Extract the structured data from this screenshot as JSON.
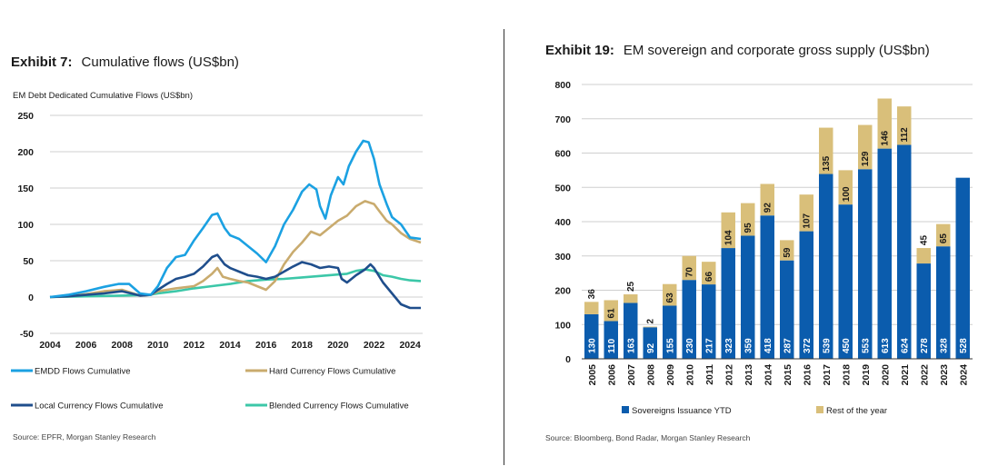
{
  "left": {
    "exhibit_number": "Exhibit 7:",
    "exhibit_title": "Cumulative flows (US$bn)",
    "chart_subtitle": "EM Debt Dedicated Cumulative Flows (US$bn)",
    "source": "Source: EPFR, Morgan Stanley Research"
  },
  "right": {
    "exhibit_number": "Exhibit 19:",
    "exhibit_title": "EM sovereign and corporate gross supply (US$bn)",
    "source": "Source: Bloomberg, Bond Radar, Morgan Stanley Research"
  },
  "colors": {
    "emdd": "#1ba1e2",
    "hard": "#c9ab6e",
    "local": "#1f4e8c",
    "blended": "#3cc7a8",
    "sovereign": "#0b5cad",
    "rest": "#d9bf7a"
  },
  "chart_data": [
    {
      "type": "line",
      "title": "EM Debt Dedicated Cumulative Flows (US$bn)",
      "xlim": [
        2004,
        2024.7
      ],
      "ylim": [
        -50,
        250
      ],
      "x_ticks": [
        "2004",
        "2006",
        "2008",
        "2010",
        "2012",
        "2014",
        "2016",
        "2018",
        "2020",
        "2022",
        "2024"
      ],
      "y_ticks": [
        "250",
        "200",
        "150",
        "100",
        "50",
        "0",
        "-50"
      ],
      "grid": true,
      "legend": "bottom",
      "series": [
        {
          "name": "EMDD Flows Cumulative",
          "color_key": "emdd",
          "x": [
            2004,
            2005,
            2006,
            2007,
            2007.8,
            2008.4,
            2009,
            2009.6,
            2010,
            2010.5,
            2011,
            2011.5,
            2012,
            2012.5,
            2013,
            2013.3,
            2013.7,
            2014,
            2014.5,
            2015,
            2015.5,
            2016,
            2016.5,
            2017,
            2017.5,
            2018,
            2018.4,
            2018.8,
            2019,
            2019.3,
            2019.6,
            2020,
            2020.3,
            2020.6,
            2021,
            2021.4,
            2021.7,
            2022,
            2022.3,
            2022.7,
            2023,
            2023.5,
            2024,
            2024.6
          ],
          "y": [
            0,
            3,
            8,
            14,
            18,
            18,
            5,
            3,
            15,
            40,
            55,
            58,
            78,
            95,
            113,
            115,
            95,
            85,
            80,
            70,
            60,
            48,
            70,
            100,
            120,
            145,
            155,
            148,
            125,
            108,
            140,
            165,
            155,
            180,
            200,
            215,
            213,
            190,
            155,
            128,
            110,
            100,
            82,
            80
          ]
        },
        {
          "name": "Hard Currency Flows Cumulative",
          "color_key": "hard",
          "x": [
            2004,
            2005,
            2006,
            2007,
            2008,
            2009,
            2009.6,
            2010,
            2011,
            2012,
            2012.5,
            2013,
            2013.3,
            2013.6,
            2014,
            2014.5,
            2015,
            2015.5,
            2016,
            2016.5,
            2017,
            2017.5,
            2018,
            2018.5,
            2019,
            2019.5,
            2020,
            2020.5,
            2021,
            2021.5,
            2022,
            2022.3,
            2022.7,
            2023,
            2023.5,
            2024,
            2024.6
          ],
          "y": [
            0,
            1,
            4,
            8,
            10,
            2,
            3,
            8,
            12,
            15,
            22,
            32,
            40,
            28,
            25,
            22,
            20,
            15,
            10,
            22,
            45,
            62,
            75,
            90,
            85,
            95,
            105,
            112,
            125,
            132,
            128,
            118,
            105,
            100,
            88,
            80,
            75
          ]
        },
        {
          "name": "Local Currency Flows Cumulative",
          "color_key": "local",
          "x": [
            2004,
            2005,
            2006,
            2007,
            2008,
            2009,
            2009.6,
            2010,
            2010.5,
            2011,
            2011.5,
            2012,
            2012.5,
            2013,
            2013.3,
            2013.7,
            2014,
            2014.5,
            2015,
            2015.5,
            2016,
            2016.5,
            2017,
            2017.5,
            2018,
            2018.5,
            2019,
            2019.5,
            2020,
            2020.2,
            2020.5,
            2021,
            2021.5,
            2021.8,
            2022,
            2022.5,
            2023,
            2023.5,
            2024,
            2024.6
          ],
          "y": [
            0,
            1,
            3,
            5,
            8,
            2,
            3,
            10,
            18,
            25,
            28,
            32,
            42,
            55,
            58,
            45,
            40,
            35,
            30,
            28,
            25,
            28,
            35,
            42,
            48,
            45,
            40,
            42,
            40,
            25,
            20,
            30,
            38,
            45,
            40,
            20,
            5,
            -10,
            -15,
            -15
          ]
        },
        {
          "name": "Blended Currency Flows Cumulative",
          "color_key": "blended",
          "x": [
            2004,
            2006,
            2008,
            2009.5,
            2010,
            2011,
            2012,
            2013,
            2014,
            2015,
            2016,
            2017,
            2018,
            2019,
            2020,
            2020.5,
            2021,
            2021.5,
            2022,
            2022.5,
            2023,
            2023.5,
            2024,
            2024.6
          ],
          "y": [
            0,
            1,
            2,
            3,
            5,
            8,
            12,
            15,
            18,
            22,
            24,
            25,
            27,
            29,
            31,
            32,
            36,
            38,
            36,
            30,
            28,
            25,
            23,
            22
          ]
        }
      ]
    },
    {
      "type": "bar",
      "title": "EM sovereign and corporate gross supply (US$bn)",
      "stacked": true,
      "categories": [
        "2005",
        "2006",
        "2007",
        "2008",
        "2009",
        "2010",
        "2011",
        "2012",
        "2013",
        "2014",
        "2015",
        "2016",
        "2017",
        "2018",
        "2019",
        "2020",
        "2021",
        "2022",
        "2023",
        "2024"
      ],
      "ylim": [
        0,
        800
      ],
      "y_ticks": [
        "800",
        "700",
        "600",
        "500",
        "400",
        "300",
        "200",
        "100",
        "0"
      ],
      "grid": true,
      "legend": "bottom",
      "series": [
        {
          "name": "Sovereigns Issuance YTD",
          "color_key": "sovereign",
          "values": [
            130,
            110,
            163,
            92,
            155,
            230,
            217,
            323,
            359,
            418,
            287,
            372,
            539,
            450,
            553,
            613,
            624,
            278,
            328,
            528
          ],
          "labels": [
            "130",
            "110",
            "163",
            "92",
            "155",
            "230",
            "217",
            "323",
            "359",
            "418",
            "287",
            "372",
            "539",
            "450",
            "553",
            "613",
            "624",
            "278",
            "328",
            "528"
          ]
        },
        {
          "name": "Rest of the year",
          "color_key": "rest",
          "values": [
            36,
            61,
            25,
            2,
            63,
            70,
            66,
            104,
            95,
            92,
            59,
            107,
            135,
            100,
            129,
            146,
            112,
            45,
            65,
            0
          ],
          "labels": [
            "36",
            "61",
            "25",
            "2",
            "63",
            "70",
            "66",
            "104",
            "95",
            "92",
            "59",
            "107",
            "135",
            "100",
            "129",
            "146",
            "112",
            "45",
            "65",
            ""
          ]
        }
      ]
    }
  ]
}
